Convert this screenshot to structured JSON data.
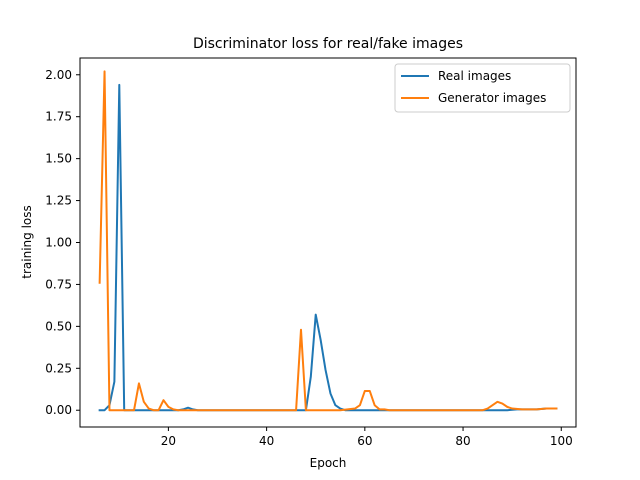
{
  "chart_data": {
    "type": "line",
    "title": "Discriminator loss for real/fake images",
    "xlabel": "Epoch",
    "ylabel": "training loss",
    "xlim": [
      2,
      103
    ],
    "ylim": [
      -0.1,
      2.1
    ],
    "xticks": [
      20,
      40,
      60,
      80,
      100
    ],
    "xtick_labels": [
      "20",
      "40",
      "60",
      "80",
      "100"
    ],
    "yticks": [
      0.0,
      0.25,
      0.5,
      0.75,
      1.0,
      1.25,
      1.5,
      1.75,
      2.0
    ],
    "ytick_labels": [
      "0.00",
      "0.25",
      "0.50",
      "0.75",
      "1.00",
      "1.25",
      "1.50",
      "1.75",
      "2.00"
    ],
    "grid": false,
    "legend_position": "top-right",
    "series": [
      {
        "name": "Real images",
        "color": "#1f77b4",
        "x": [
          6,
          7,
          8,
          9,
          10,
          11,
          12,
          13,
          14,
          15,
          16,
          17,
          18,
          19,
          20,
          21,
          22,
          23,
          24,
          25,
          26,
          30,
          35,
          40,
          45,
          47,
          48,
          49,
          50,
          51,
          52,
          53,
          54,
          55,
          56,
          57,
          60,
          65,
          70,
          75,
          80,
          85,
          87,
          89,
          91,
          93,
          95,
          97,
          99
        ],
        "y": [
          0.0,
          0.0,
          0.03,
          0.17,
          1.94,
          0.0,
          0.0,
          0.0,
          0.0,
          0.0,
          0.0,
          0.0,
          0.0,
          0.0,
          0.0,
          0.0,
          0.0,
          0.005,
          0.015,
          0.005,
          0.0,
          0.0,
          0.0,
          0.0,
          0.0,
          0.0,
          0.0,
          0.2,
          0.57,
          0.42,
          0.24,
          0.1,
          0.03,
          0.01,
          0.0,
          0.0,
          0.0,
          0.0,
          0.0,
          0.0,
          0.0,
          0.0,
          0.0,
          0.0,
          0.005,
          0.005,
          0.005,
          0.01,
          0.01
        ]
      },
      {
        "name": "Generator images",
        "color": "#ff7f0e",
        "x": [
          6,
          7,
          8,
          9,
          10,
          11,
          12,
          13,
          14,
          15,
          16,
          17,
          18,
          19,
          20,
          21,
          22,
          23,
          24,
          25,
          26,
          30,
          35,
          40,
          45,
          46,
          47,
          48,
          49,
          50,
          55,
          58,
          59,
          60,
          61,
          62,
          63,
          64,
          65,
          70,
          75,
          80,
          84,
          85,
          86,
          87,
          88,
          89,
          90,
          92,
          95,
          97,
          99
        ],
        "y": [
          0.76,
          2.02,
          0.0,
          0.0,
          0.0,
          0.0,
          0.0,
          0.0,
          0.16,
          0.05,
          0.01,
          0.0,
          0.0,
          0.06,
          0.02,
          0.005,
          0.0,
          0.0,
          0.0,
          0.0,
          0.0,
          0.0,
          0.0,
          0.0,
          0.0,
          0.0,
          0.48,
          0.0,
          0.0,
          0.0,
          0.0,
          0.01,
          0.03,
          0.115,
          0.115,
          0.03,
          0.005,
          0.005,
          0.0,
          0.0,
          0.0,
          0.0,
          0.0,
          0.01,
          0.03,
          0.05,
          0.04,
          0.02,
          0.01,
          0.005,
          0.005,
          0.01,
          0.01
        ]
      }
    ]
  }
}
